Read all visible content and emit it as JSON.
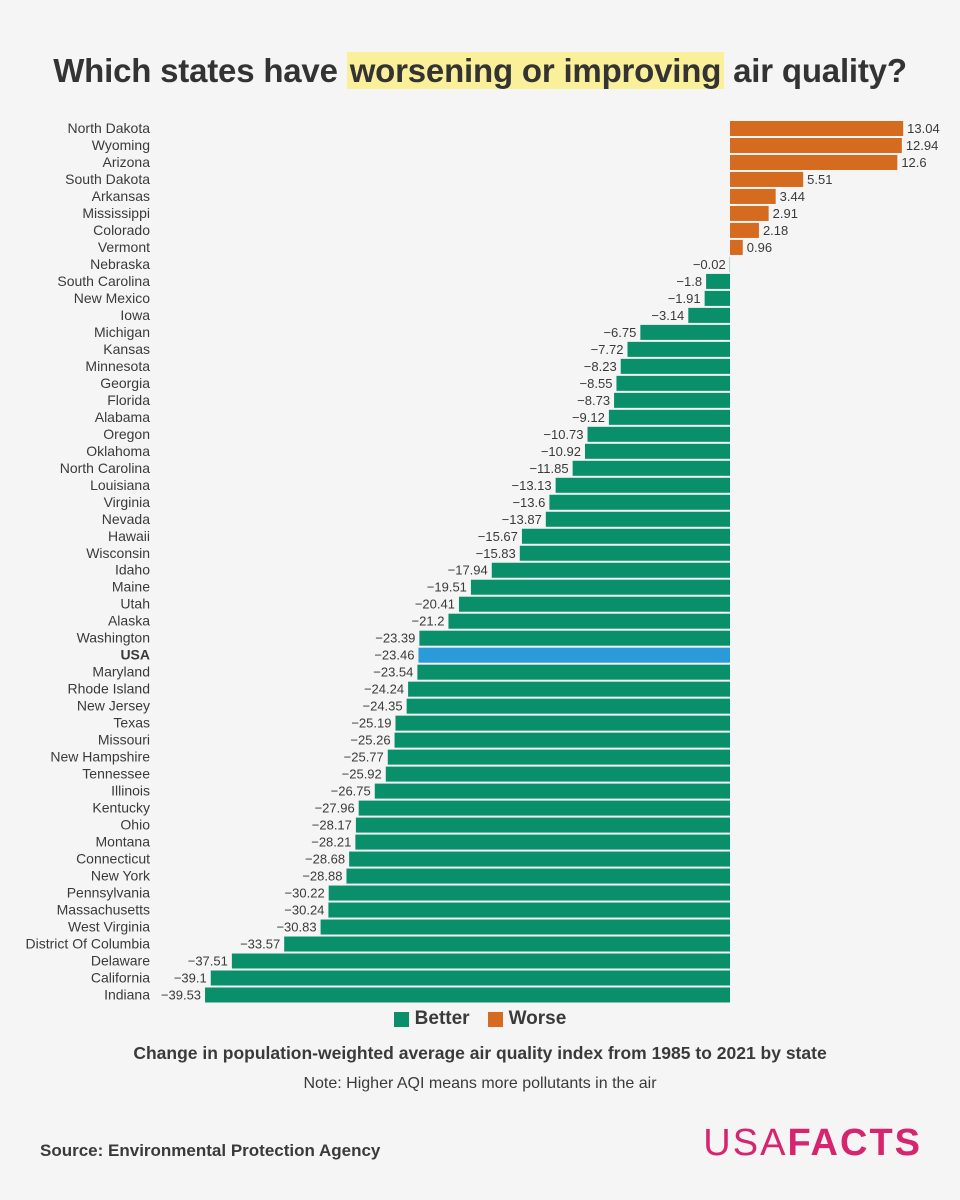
{
  "title": {
    "before": "Which states have ",
    "highlight": "worsening or improving",
    "after": " air quality?"
  },
  "subtitle": "Change in population-weighted average air quality index from 1985 to 2021 by state",
  "note": "Note: Higher AQI means more pollutants in the air",
  "source": "Source: Environmental Protection Agency",
  "logo": {
    "part1": "USA",
    "part2": "FACTS"
  },
  "legend": [
    {
      "label": "Better",
      "color": "#0a8f6b"
    },
    {
      "label": "Worse",
      "color": "#d56b1e"
    }
  ],
  "colors": {
    "better": "#0a8f6b",
    "worse": "#d56b1e",
    "usa": "#2b9ad8",
    "highlight": "#fbf09a",
    "logo": "#d6246e"
  },
  "chart_data": {
    "type": "bar",
    "orientation": "horizontal",
    "grid": false,
    "legend_position": "bottom-center",
    "categories": [
      "North Dakota",
      "Wyoming",
      "Arizona",
      "South Dakota",
      "Arkansas",
      "Mississippi",
      "Colorado",
      "Vermont",
      "Nebraska",
      "South Carolina",
      "New Mexico",
      "Iowa",
      "Michigan",
      "Kansas",
      "Minnesota",
      "Georgia",
      "Florida",
      "Alabama",
      "Oregon",
      "Oklahoma",
      "North Carolina",
      "Louisiana",
      "Virginia",
      "Nevada",
      "Hawaii",
      "Wisconsin",
      "Idaho",
      "Maine",
      "Utah",
      "Alaska",
      "Washington",
      "USA",
      "Maryland",
      "Rhode Island",
      "New Jersey",
      "Texas",
      "Missouri",
      "New Hampshire",
      "Tennessee",
      "Illinois",
      "Kentucky",
      "Ohio",
      "Montana",
      "Connecticut",
      "New York",
      "Pennsylvania",
      "Massachusetts",
      "West Virginia",
      "District Of Columbia",
      "Delaware",
      "California",
      "Indiana"
    ],
    "values": [
      13.04,
      12.94,
      12.6,
      5.51,
      3.44,
      2.91,
      2.18,
      0.96,
      -0.02,
      -1.8,
      -1.91,
      -3.14,
      -6.75,
      -7.72,
      -8.23,
      -8.55,
      -8.73,
      -9.12,
      -10.73,
      -10.92,
      -11.85,
      -13.13,
      -13.6,
      -13.87,
      -15.67,
      -15.83,
      -17.94,
      -19.51,
      -20.41,
      -21.2,
      -23.39,
      -23.46,
      -23.54,
      -24.24,
      -24.35,
      -25.19,
      -25.26,
      -25.77,
      -25.92,
      -26.75,
      -27.96,
      -28.17,
      -28.21,
      -28.68,
      -28.88,
      -30.22,
      -30.24,
      -30.83,
      -33.57,
      -37.51,
      -39.1,
      -39.53
    ],
    "value_labels": [
      "13.04",
      "12.94",
      "12.6",
      "5.51",
      "3.44",
      "2.91",
      "2.18",
      "0.96",
      "−0.02",
      "−1.8",
      "−1.91",
      "−3.14",
      "−6.75",
      "−7.72",
      "−8.23",
      "−8.55",
      "−8.73",
      "−9.12",
      "−10.73",
      "−10.92",
      "−11.85",
      "−13.13",
      "−13.6",
      "−13.87",
      "−15.67",
      "−15.83",
      "−17.94",
      "−19.51",
      "−20.41",
      "−21.2",
      "−23.39",
      "−23.46",
      "−23.54",
      "−24.24",
      "−24.35",
      "−25.19",
      "−25.26",
      "−25.77",
      "−25.92",
      "−26.75",
      "−27.96",
      "−28.17",
      "−28.21",
      "−28.68",
      "−28.88",
      "−30.22",
      "−30.24",
      "−30.83",
      "−33.57",
      "−37.51",
      "−39.1",
      "−39.53"
    ],
    "highlight_category": "USA"
  }
}
